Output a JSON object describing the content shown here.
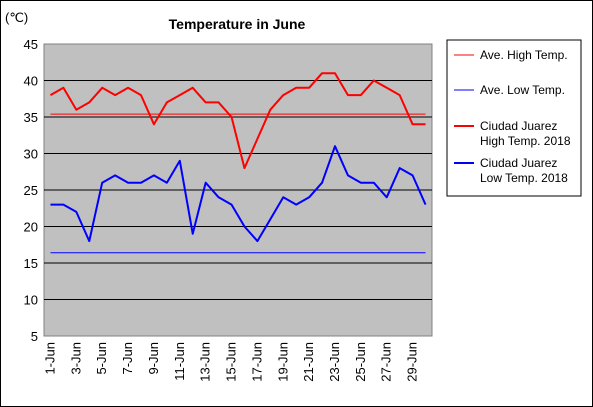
{
  "chart_data": {
    "type": "line",
    "title": "Temperature in June",
    "unit_label": "(℃)",
    "ylim": [
      5,
      45
    ],
    "y_ticks": [
      5,
      10,
      15,
      20,
      25,
      30,
      35,
      40,
      45
    ],
    "x_ticks": [
      "1-Jun",
      "3-Jun",
      "5-Jun",
      "7-Jun",
      "9-Jun",
      "11-Jun",
      "13-Jun",
      "15-Jun",
      "17-Jun",
      "19-Jun",
      "21-Jun",
      "23-Jun",
      "25-Jun",
      "27-Jun",
      "29-Jun"
    ],
    "grid": true,
    "legend_position": "right",
    "days": 30,
    "series": [
      {
        "name": "Ave. High Temp.",
        "color": "#ff0000",
        "values": [
          35.4
        ]
      },
      {
        "name": "Ave. Low Temp.",
        "color": "#0000ff",
        "values": [
          16.4
        ]
      },
      {
        "name": "Ciudad Juarez High Temp. 2018",
        "legend_lines": [
          "Ciudad Juarez",
          "High Temp. 2018"
        ],
        "color": "#ff0000",
        "values": [
          38,
          39,
          36,
          37,
          39,
          38,
          39,
          38,
          34,
          37,
          38,
          39,
          37,
          37,
          35,
          28,
          32,
          36,
          38,
          39,
          39,
          41,
          41,
          38,
          38,
          40,
          39,
          38,
          34,
          34
        ]
      },
      {
        "name": "Ciudad Juarez Low Temp. 2018",
        "legend_lines": [
          "Ciudad Juarez",
          "Low Temp. 2018"
        ],
        "color": "#0000ff",
        "values": [
          23,
          23,
          22,
          18,
          26,
          27,
          26,
          26,
          27,
          26,
          29,
          19,
          26,
          24,
          23,
          20,
          18,
          21,
          24,
          23,
          24,
          26,
          31,
          27,
          26,
          26,
          24,
          28,
          27,
          23
        ]
      }
    ]
  }
}
